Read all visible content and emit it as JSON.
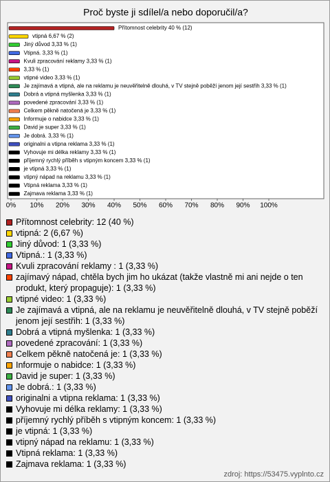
{
  "chart_data": {
    "type": "hbar",
    "title": "Proč byste ji sdílel/a nebo doporučil/a?",
    "values": [
      40,
      6.67,
      3.33,
      3.33,
      3.33,
      3.33,
      3.33,
      3.33,
      3.33,
      3.33,
      3.33,
      3.33,
      3.33,
      3.33,
      3.33,
      3.33,
      3.33,
      3.33,
      3.33,
      3.33,
      3.33
    ],
    "value_labels": [
      "Přítomnost celebrity 40 % (12)",
      "vtipná 6,67 % (2)",
      "Jiný důvod 3,33 % (1)",
      "Vtipná. 3,33 % (1)",
      "Kvuli zpracování reklamy  3,33 % (1)",
      "3,33 % (1)",
      "vtipné video 3,33 % (1)",
      "Je zajímavá a vtipná, ale na reklamu je neuvěřitelně dlouhá, v TV stejně poběží jenom její sestřih 3,33 % (1)",
      "Dobrá a vtipná myšlenka 3,33 % (1)",
      "povedené zpracování 3,33 % (1)",
      "Celkem pěkně natočená je 3,33 % (1)",
      "Informuje o nabidce 3,33 % (1)",
      "David je super 3,33 % (1)",
      "Je dobrá. 3,33 % (1)",
      "originalni a vtipna reklama 3,33 % (1)",
      "Vyhovuje mi délka reklamy 3,33 % (1)",
      "příjemný rychlý příběh s vtipným koncem 3,33 % (1)",
      "je vtipná 3,33 % (1)",
      "vtipný nápad na reklamu 3,33 % (1)",
      "Vtipná reklama 3,33 % (1)",
      "Zajmava reklama 3,33 % (1)"
    ],
    "legend": [
      "Přítomnost celebrity: 12 (40 %)",
      "vtipná: 2 (6,67 %)",
      "Jiný důvod: 1 (3,33 %)",
      "Vtipná.: 1 (3,33 %)",
      "Kvuli zpracování reklamy : 1 (3,33 %)",
      "zajímavý nápad, chtěla bych jim ho ukázat (takže vlastně mi ani nejde o ten produkt, který propaguje): 1 (3,33 %)",
      "vtipné video: 1 (3,33 %)",
      "Je zajímavá a vtipná, ale na reklamu je neuvěřitelně dlouhá, v TV stejně poběží jenom její sestřih: 1 (3,33 %)",
      "Dobrá a vtipná myšlenka: 1 (3,33 %)",
      "povedené zpracování: 1 (3,33 %)",
      "Celkem pěkně natočená je: 1 (3,33 %)",
      "Informuje o nabidce: 1 (3,33 %)",
      "David je super: 1 (3,33 %)",
      "Je dobrá.: 1 (3,33 %)",
      "originalni a vtipna reklama: 1 (3,33 %)",
      "Vyhovuje mi délka reklamy: 1 (3,33 %)",
      "příjemný rychlý příběh s vtipným koncem: 1 (3,33 %)",
      "je vtipná: 1 (3,33 %)",
      "vtipný nápad na reklamu: 1 (3,33 %)",
      "Vtipná reklama: 1 (3,33 %)",
      "Zajmava reklama: 1 (3,33 %)"
    ],
    "colors": [
      "#b22222",
      "#ffd700",
      "#32cd32",
      "#4169e1",
      "#c71585",
      "#ff4500",
      "#9acd32",
      "#2e8b57",
      "#2f7f8f",
      "#b06cc0",
      "#f08050",
      "#ffa500",
      "#3cb043",
      "#6495ed",
      "#4050c0",
      "#000000",
      "#000000",
      "#000000",
      "#000000",
      "#000000",
      "#000000"
    ],
    "xlim": [
      0,
      120
    ],
    "xticks": [
      {
        "value": 0,
        "label": "0%"
      },
      {
        "value": 10,
        "label": "10%"
      },
      {
        "value": 20,
        "label": "20%"
      },
      {
        "value": 30,
        "label": "30%"
      },
      {
        "value": 40,
        "label": "40%"
      },
      {
        "value": 50,
        "label": "50%"
      },
      {
        "value": 60,
        "label": "60%"
      },
      {
        "value": 70,
        "label": "70%"
      },
      {
        "value": 80,
        "label": "80%"
      },
      {
        "value": 90,
        "label": "90%"
      },
      {
        "value": 100,
        "label": "100%"
      }
    ],
    "source": "zdroj: https://53475.vyplnto.cz"
  }
}
